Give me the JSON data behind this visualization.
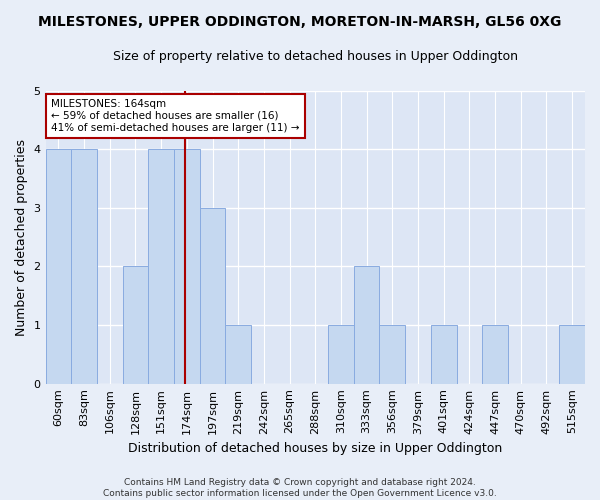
{
  "title": "MILESTONES, UPPER ODDINGTON, MORETON-IN-MARSH, GL56 0XG",
  "subtitle": "Size of property relative to detached houses in Upper Oddington",
  "xlabel": "Distribution of detached houses by size in Upper Oddington",
  "ylabel": "Number of detached properties",
  "categories": [
    "60sqm",
    "83sqm",
    "106sqm",
    "128sqm",
    "151sqm",
    "174sqm",
    "197sqm",
    "219sqm",
    "242sqm",
    "265sqm",
    "288sqm",
    "310sqm",
    "333sqm",
    "356sqm",
    "379sqm",
    "401sqm",
    "424sqm",
    "447sqm",
    "470sqm",
    "492sqm",
    "515sqm"
  ],
  "values": [
    4,
    4,
    0,
    2,
    4,
    4,
    3,
    1,
    0,
    0,
    0,
    1,
    2,
    1,
    0,
    1,
    0,
    1,
    0,
    0,
    1
  ],
  "bar_color": "#c5d8f0",
  "bar_edge_color": "#89abe0",
  "highlight_line_index": 5,
  "highlight_line_color": "#aa0000",
  "annotation_text": "MILESTONES: 164sqm\n← 59% of detached houses are smaller (16)\n41% of semi-detached houses are larger (11) →",
  "annotation_box_facecolor": "#ffffff",
  "annotation_box_edgecolor": "#aa0000",
  "ylim": [
    0,
    5
  ],
  "yticks": [
    0,
    1,
    2,
    3,
    4,
    5
  ],
  "footer_text": "Contains HM Land Registry data © Crown copyright and database right 2024.\nContains public sector information licensed under the Open Government Licence v3.0.",
  "bg_color": "#e8eef8",
  "plot_bg_color": "#dde6f5",
  "grid_color": "#ffffff",
  "title_fontsize": 10,
  "subtitle_fontsize": 9,
  "ylabel_fontsize": 9,
  "xlabel_fontsize": 9,
  "tick_fontsize": 8,
  "footer_fontsize": 6.5
}
